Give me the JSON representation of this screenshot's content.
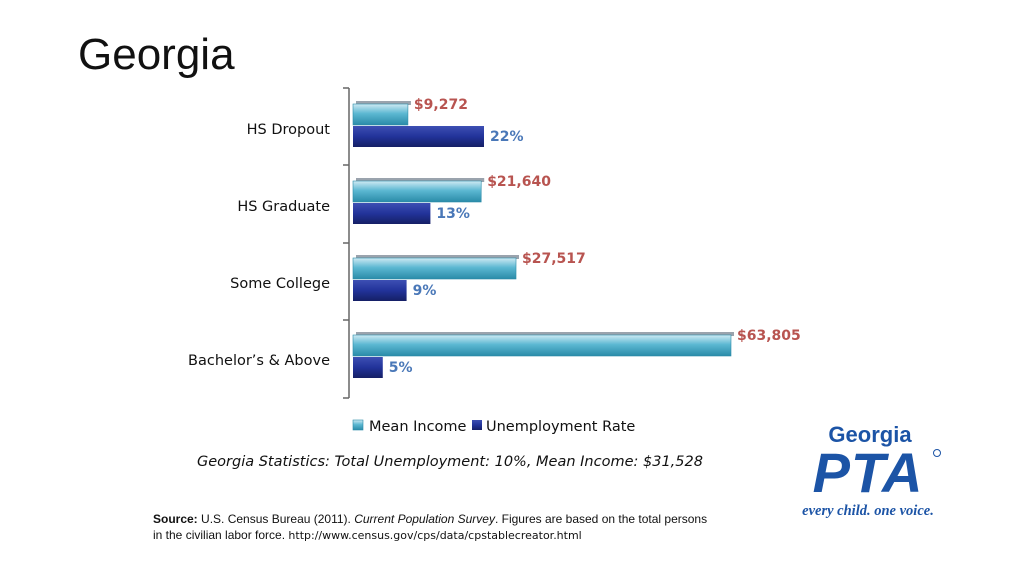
{
  "slide": {
    "title": "Georgia",
    "stats_line": "Georgia Statistics: Total Unemployment: 10%, Mean Income: $31,528",
    "source": {
      "label": "Source:",
      "publisher": " U.S. Census Bureau (2011). ",
      "survey": "Current Population Survey",
      "note": ". Figures are based on the total persons in the civilian labor force. ",
      "url": "http://www.census.gov/cps/data/cpstablecreator.html"
    }
  },
  "logo": {
    "top_text": "Georgia",
    "main_text": "PTA",
    "tagline": "every child. one voice."
  },
  "colors": {
    "income": "#3fa6c4",
    "rate": "#22339a",
    "income_label": "#b85450",
    "rate_label": "#4a78b8",
    "logo_blue": "#1c54a6"
  },
  "chart_data": {
    "type": "bar",
    "orientation": "horizontal",
    "categories": [
      "HS Dropout",
      "HS Graduate",
      "Some College",
      "Bachelor’s & Above"
    ],
    "series": [
      {
        "name": "Mean Income",
        "values": [
          9272,
          21640,
          27517,
          63805
        ],
        "labels": [
          "$9,272",
          "$21,640",
          "$27,517",
          "$63,805"
        ]
      },
      {
        "name": "Unemployment Rate",
        "values": [
          22,
          13,
          9,
          5
        ],
        "labels": [
          "22%",
          "13%",
          "9%",
          "5%"
        ]
      }
    ],
    "legend": "bottom",
    "grid": false
  }
}
